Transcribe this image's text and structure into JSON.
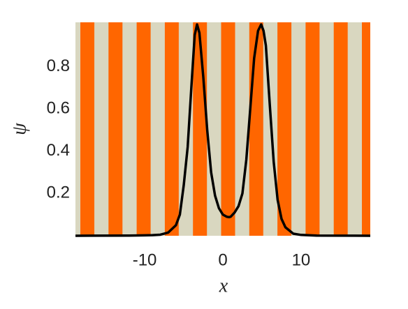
{
  "chart_data": {
    "type": "line",
    "x_label": "x",
    "y_label": "ψ",
    "x": [
      -18.85,
      -12,
      -10,
      -9,
      -8,
      -7,
      -6,
      -5.5,
      -5,
      -4.5,
      -4,
      -3.6,
      -3.3,
      -3,
      -2.5,
      -2,
      -1.5,
      -1,
      -0.5,
      0,
      0.5,
      0.8,
      1,
      1.5,
      2,
      2.5,
      3,
      3.5,
      4,
      4.5,
      4.9,
      5.2,
      5.5,
      6,
      6.5,
      7,
      7.5,
      8,
      9,
      10,
      12,
      18.85
    ],
    "series": [
      {
        "color": "#000000",
        "values": [
          0,
          0.001,
          0.002,
          0.003,
          0.005,
          0.015,
          0.05,
          0.1,
          0.24,
          0.42,
          0.72,
          0.95,
          1.0,
          0.96,
          0.75,
          0.5,
          0.3,
          0.19,
          0.13,
          0.1,
          0.09,
          0.088,
          0.09,
          0.11,
          0.14,
          0.2,
          0.36,
          0.6,
          0.84,
          0.97,
          1.0,
          0.97,
          0.9,
          0.62,
          0.35,
          0.17,
          0.08,
          0.04,
          0.01,
          0.004,
          0.001,
          0
        ]
      }
    ],
    "xlim": [
      -18.85,
      18.85
    ],
    "ylim": [
      0,
      1.01
    ],
    "xticks": [
      -10,
      0,
      10
    ],
    "yticks": [
      0.2,
      0.4,
      0.6,
      0.8
    ],
    "grid": false
  }
}
